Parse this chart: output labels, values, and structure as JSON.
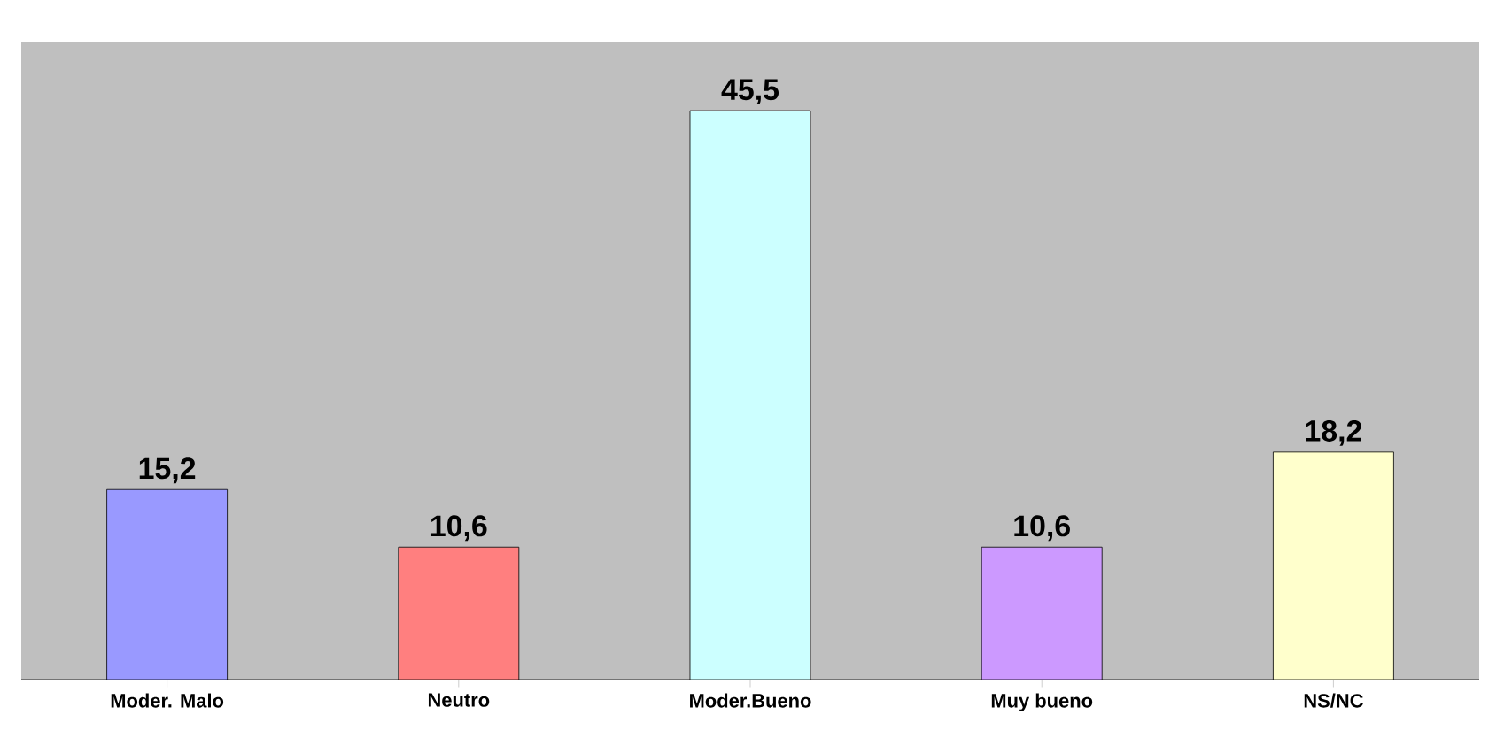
{
  "chart_data": {
    "type": "bar",
    "categories": [
      "Moder. Malo",
      "Neutro",
      "Moder.Bueno",
      "Muy bueno",
      "NS/NC"
    ],
    "values": [
      15.2,
      10.6,
      45.5,
      10.6,
      18.2
    ],
    "value_labels": [
      "15,2",
      "10,6",
      "45,5",
      "10,6",
      "18,2"
    ],
    "colors": [
      "#9999ff",
      "#ff7f7f",
      "#ccffff",
      "#cc99ff",
      "#ffffcc"
    ]
  }
}
